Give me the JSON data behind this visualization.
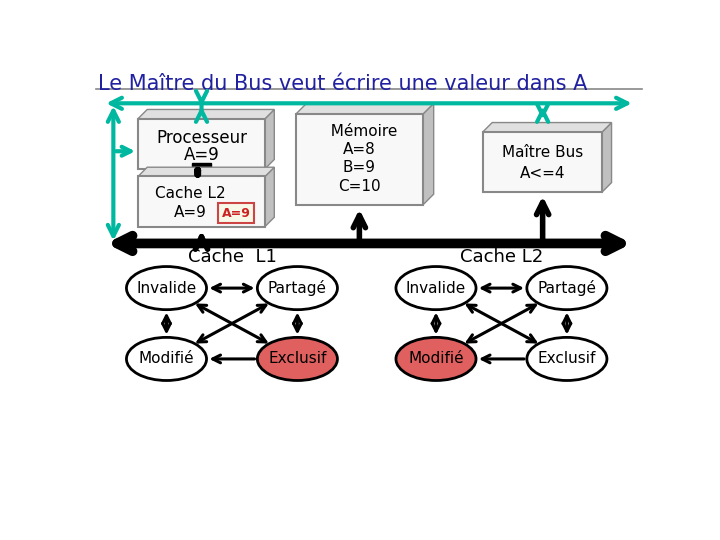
{
  "title": "Le Maître du Bus veut écrire une valeur dans A",
  "title_fontsize": 15,
  "title_color": "#2020a0",
  "bg_color": "#ffffff",
  "teal": "#00b8a0",
  "black": "#000000",
  "red_fill": "#e06060",
  "white": "#ffffff",
  "box_face": "#f8f8f8",
  "box_side": "#c0c0c0",
  "box_edge": "#888888",
  "processeur_line1": "Processeur",
  "processeur_line2": "A=9",
  "memoire_lines": [
    "  Mémoire",
    "A=8",
    "B=9",
    "C=10"
  ],
  "maitre_line1": "Maître Bus",
  "maitre_line2": "A<=4",
  "cache_l2_line1": "Cache L2",
  "cache_l2_line2": "A=9",
  "cache_value_label": "A=9",
  "cache_l1_title": "Cache  L1",
  "cache_l2_title": "Cache L2",
  "l1_colors": [
    "#ffffff",
    "#ffffff",
    "#ffffff",
    "#e06060"
  ],
  "l2_colors": [
    "#ffffff",
    "#ffffff",
    "#e06060",
    "#ffffff"
  ],
  "l1_labels": [
    "Invalide",
    "Partagé",
    "Modifié",
    "Exclusif"
  ],
  "l2_labels": [
    "Invalide",
    "Partagé",
    "Modifié",
    "Exclusif"
  ]
}
